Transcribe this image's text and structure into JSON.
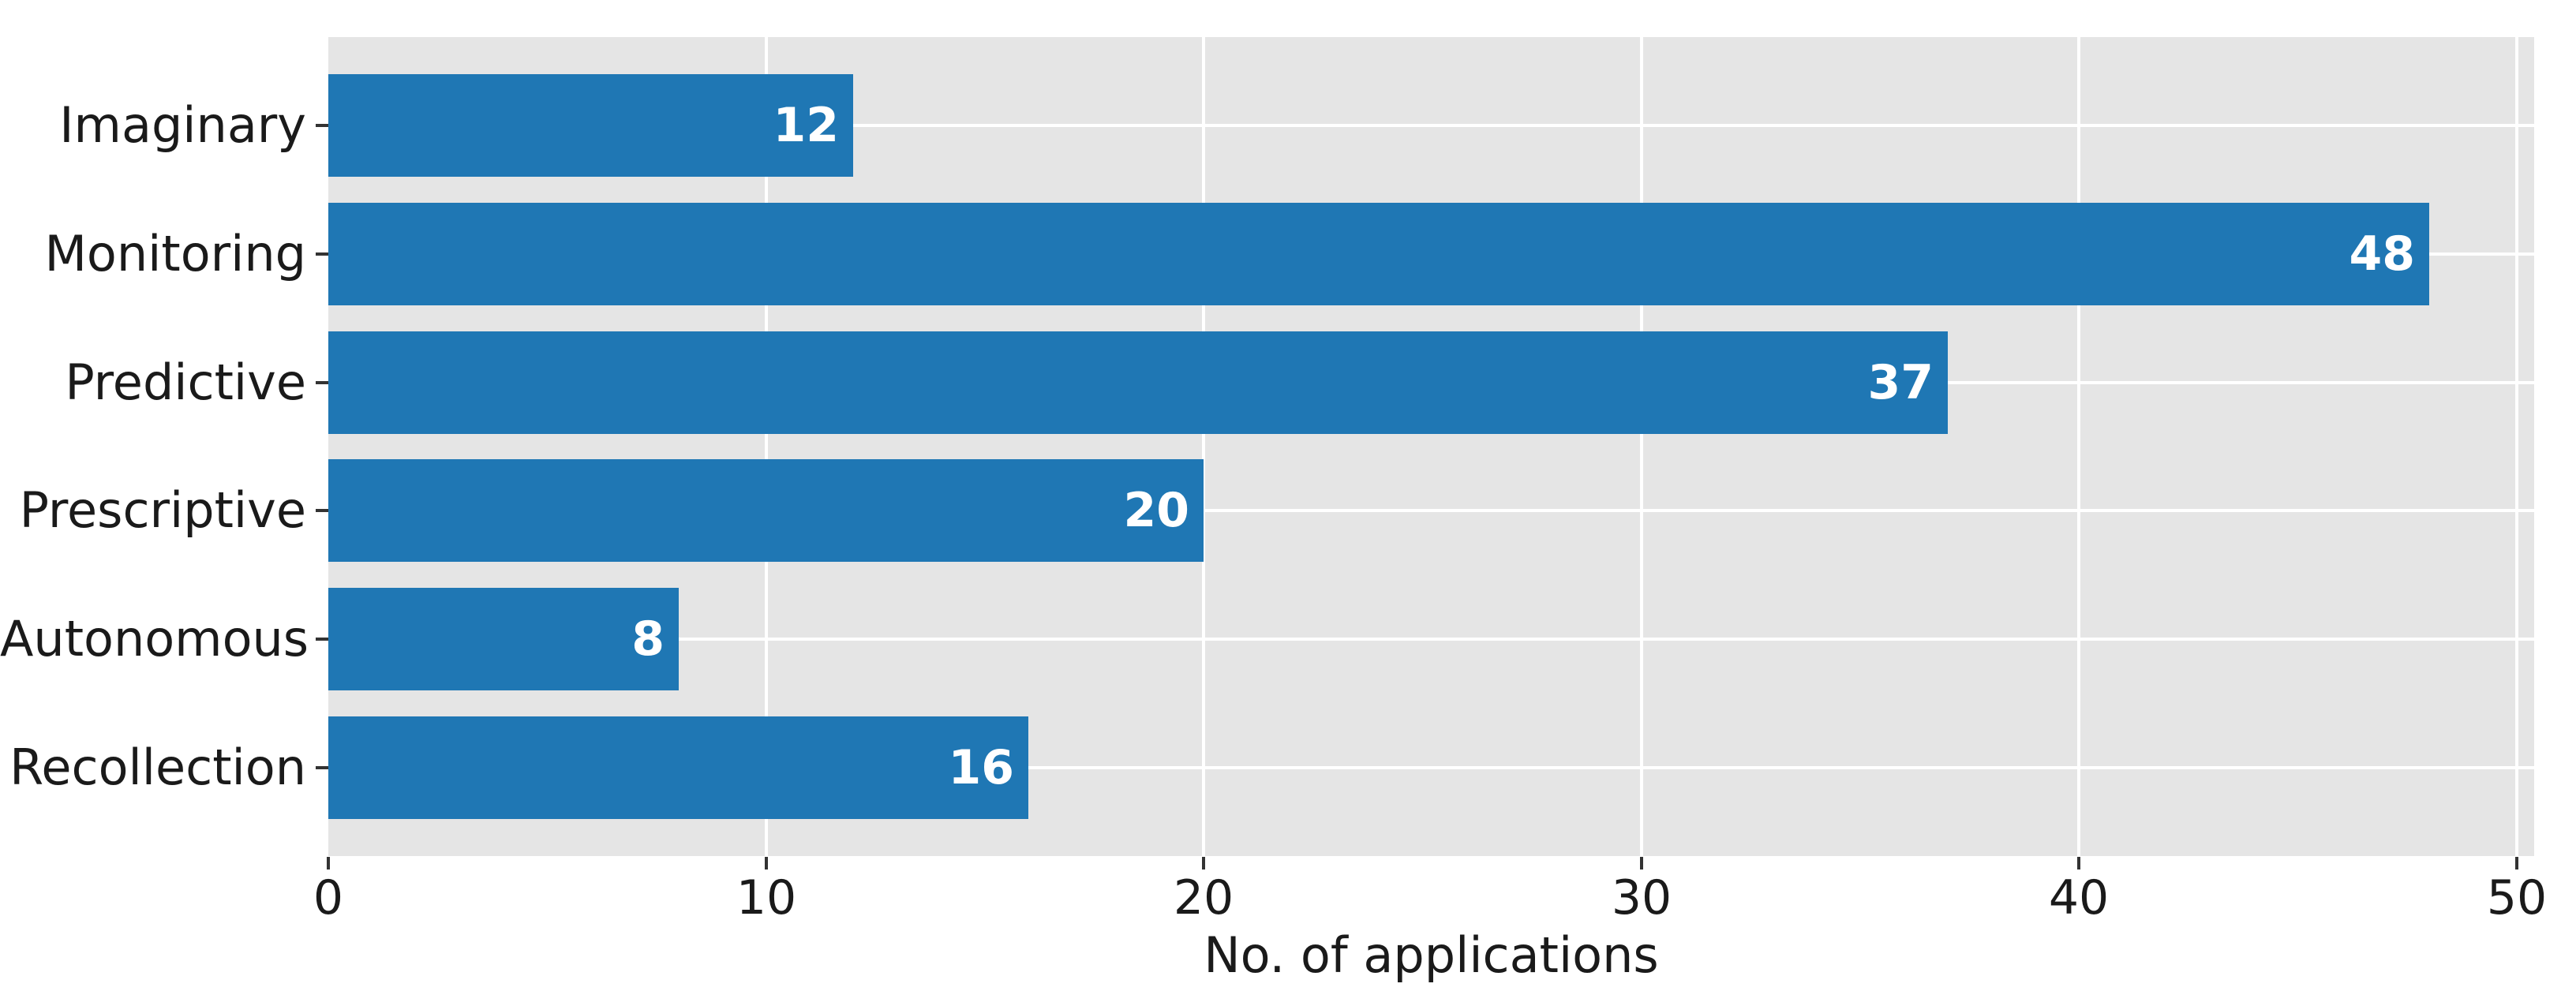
{
  "chart_data": {
    "type": "bar",
    "orientation": "horizontal",
    "title": "",
    "xlabel": "No. of applications",
    "ylabel": "",
    "categories": [
      "Imaginary",
      "Monitoring",
      "Predictive",
      "Prescriptive",
      "Autonomous",
      "Recollection"
    ],
    "values": [
      12,
      48,
      37,
      20,
      8,
      16
    ],
    "value_labels": [
      "12",
      "48",
      "37",
      "20",
      "8",
      "16"
    ],
    "x_ticks": [
      0,
      10,
      20,
      30,
      40,
      50
    ],
    "x_tick_labels": [
      "0",
      "10",
      "20",
      "30",
      "40",
      "50"
    ],
    "xlim": [
      0,
      50.4
    ],
    "grid": true,
    "grid_axes": "both",
    "legend": false,
    "bar_fraction": 0.8,
    "category_axis_margin": 0.69,
    "colors": {
      "bar": "#1f77b4",
      "plot_background": "#e5e5e5",
      "figure_background": "#ffffff",
      "gridline": "#ffffff",
      "text": "#1a1a1a",
      "tick_mark": "#333333",
      "value_label": "#ffffff"
    }
  }
}
